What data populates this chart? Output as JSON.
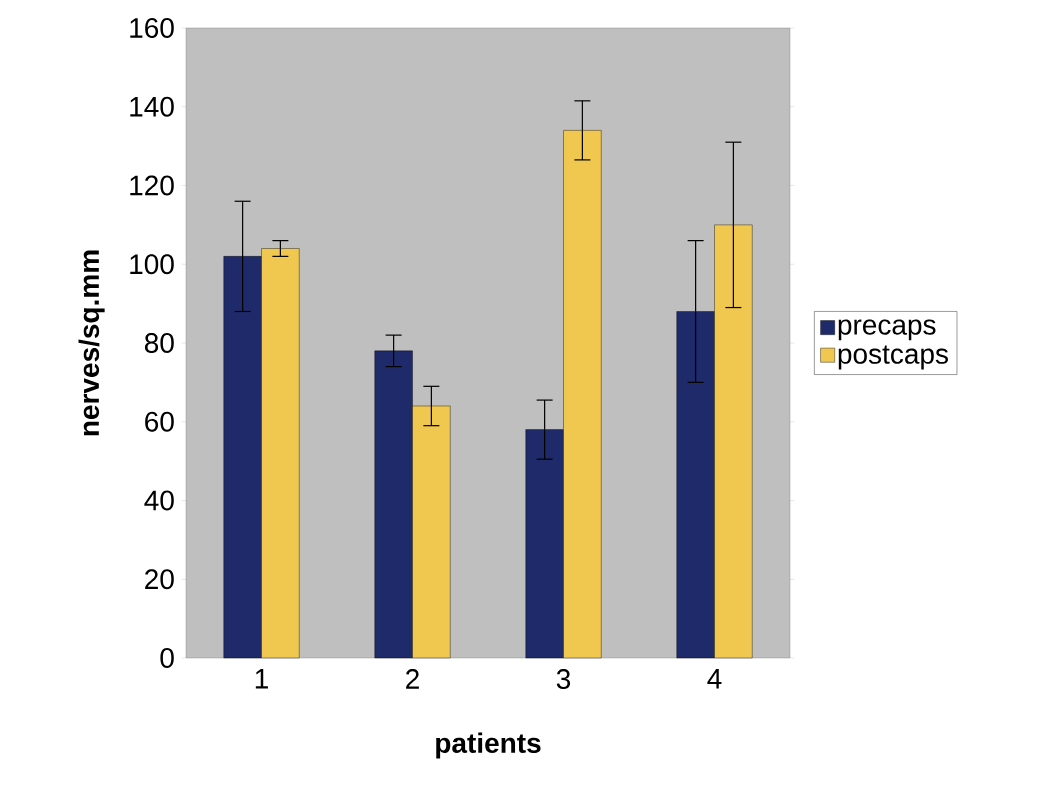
{
  "chart_data": {
    "type": "bar",
    "xlabel": "patients",
    "ylabel": "nerves/sq.mm",
    "categories": [
      "1",
      "2",
      "3",
      "4"
    ],
    "series": [
      {
        "name": "precaps",
        "color": "#1f2a6b",
        "values": [
          102,
          78,
          58,
          88
        ],
        "errors": [
          14,
          4,
          7.5,
          18
        ]
      },
      {
        "name": "postcaps",
        "color": "#f0c850",
        "values": [
          104,
          64,
          134,
          110
        ],
        "errors": [
          2,
          5,
          7.5,
          21
        ]
      }
    ],
    "ylim": [
      0,
      160
    ],
    "yticks": [
      0,
      20,
      40,
      60,
      80,
      100,
      120,
      140,
      160
    ],
    "legend": "right"
  }
}
